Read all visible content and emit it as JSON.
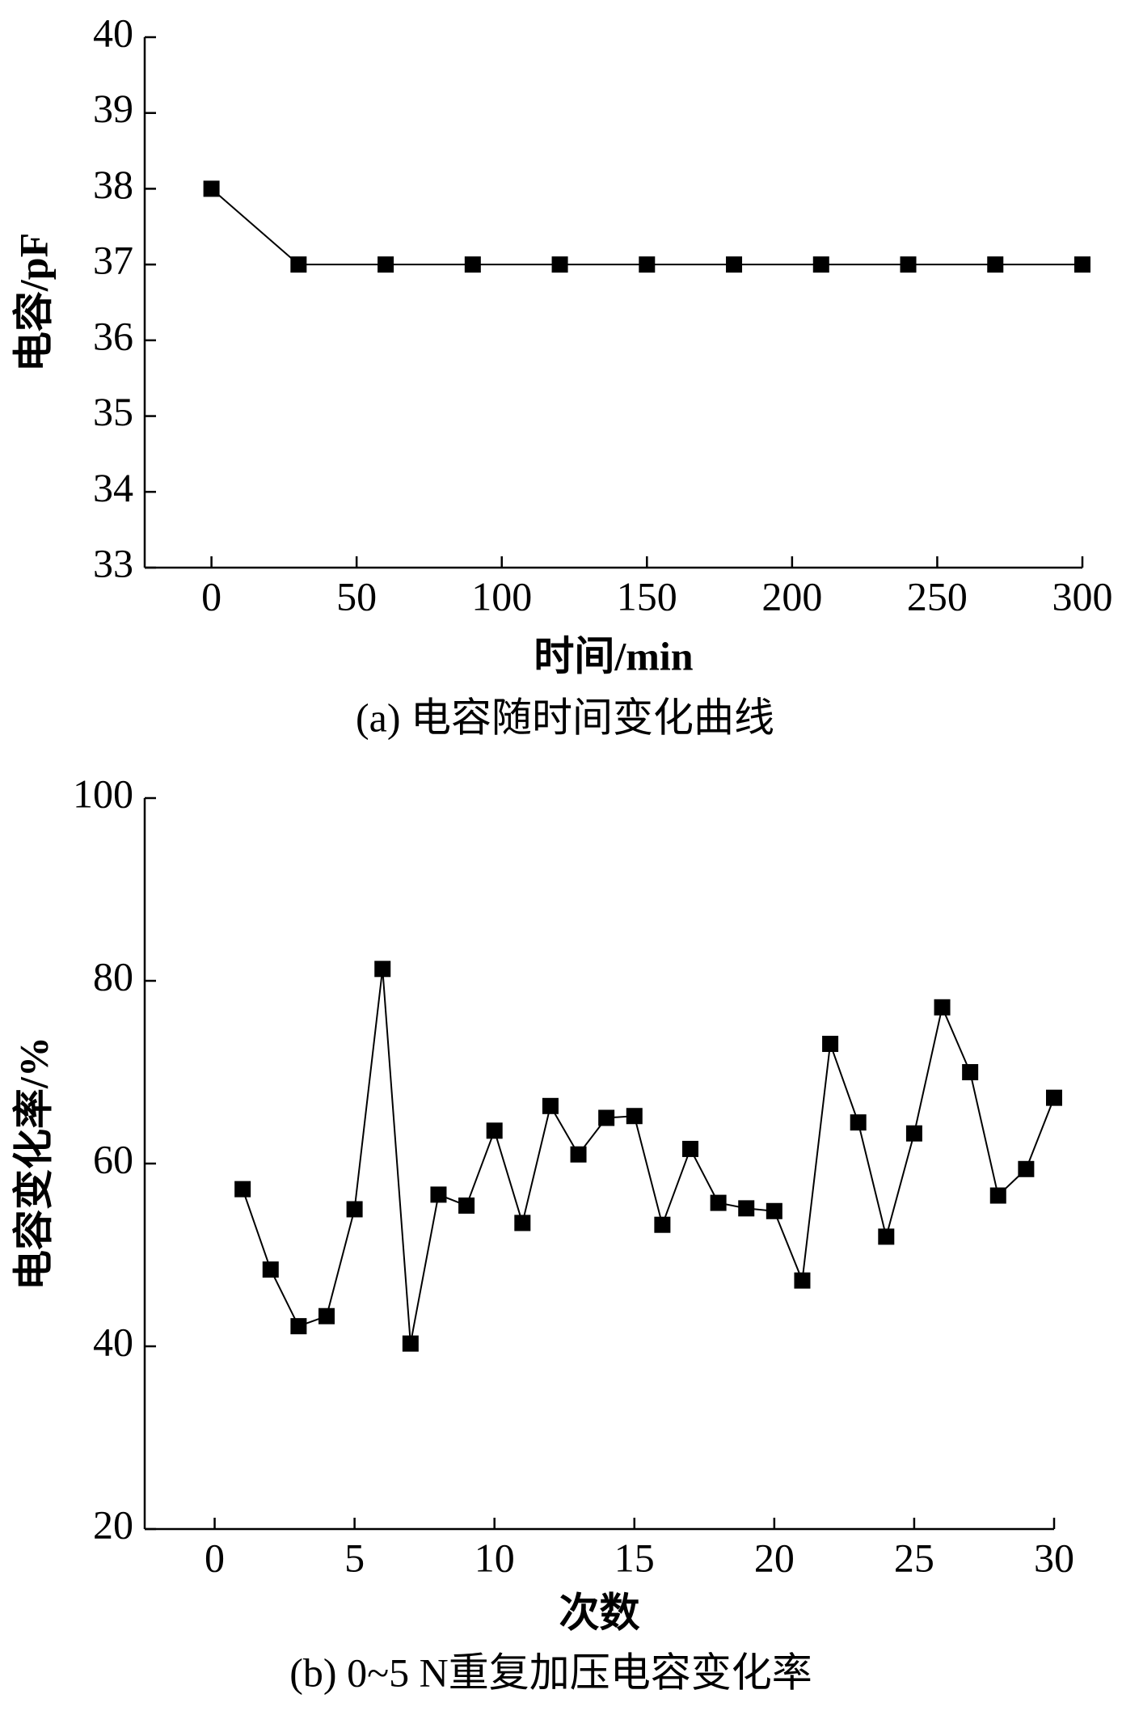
{
  "chart_data": [
    {
      "type": "line",
      "title": "(a) 电容随时间变化曲线",
      "xlabel": "时间/min",
      "ylabel": "电容/pF",
      "x": [
        0,
        30,
        60,
        90,
        120,
        150,
        180,
        210,
        240,
        270,
        300
      ],
      "values": [
        38,
        37,
        37,
        37,
        37,
        37,
        37,
        37,
        37,
        37,
        37
      ],
      "color": "#000000",
      "xlim": [
        -23,
        300
      ],
      "xticks": [
        0,
        50,
        100,
        150,
        200,
        250,
        300
      ],
      "ylim": [
        33,
        40
      ],
      "yticks": [
        33,
        34,
        35,
        36,
        37,
        38,
        39,
        40
      ],
      "marker": "square"
    },
    {
      "type": "line",
      "title": "(b) 0~5 N重复加压电容变化率",
      "xlabel": "次数",
      "ylabel": "电容变化率/%",
      "x": [
        1,
        2,
        3,
        4,
        5,
        6,
        7,
        8,
        9,
        10,
        11,
        12,
        13,
        14,
        15,
        16,
        17,
        18,
        19,
        20,
        21,
        22,
        23,
        24,
        25,
        26,
        27,
        28,
        29,
        30
      ],
      "values": [
        57.2,
        48.4,
        42.2,
        43.3,
        55.0,
        81.3,
        40.3,
        56.6,
        55.4,
        63.6,
        53.5,
        66.3,
        61.0,
        65.0,
        65.2,
        53.3,
        61.6,
        55.7,
        55.1,
        54.8,
        47.2,
        73.1,
        64.5,
        52.0,
        63.3,
        77.1,
        70.0,
        56.5,
        59.4,
        67.2
      ],
      "color": "#000000",
      "xlim": [
        -2.5,
        30
      ],
      "xticks": [
        0,
        5,
        10,
        15,
        20,
        25,
        30
      ],
      "ylim": [
        20,
        100
      ],
      "yticks": [
        20,
        40,
        60,
        80,
        100
      ],
      "marker": "square"
    }
  ]
}
